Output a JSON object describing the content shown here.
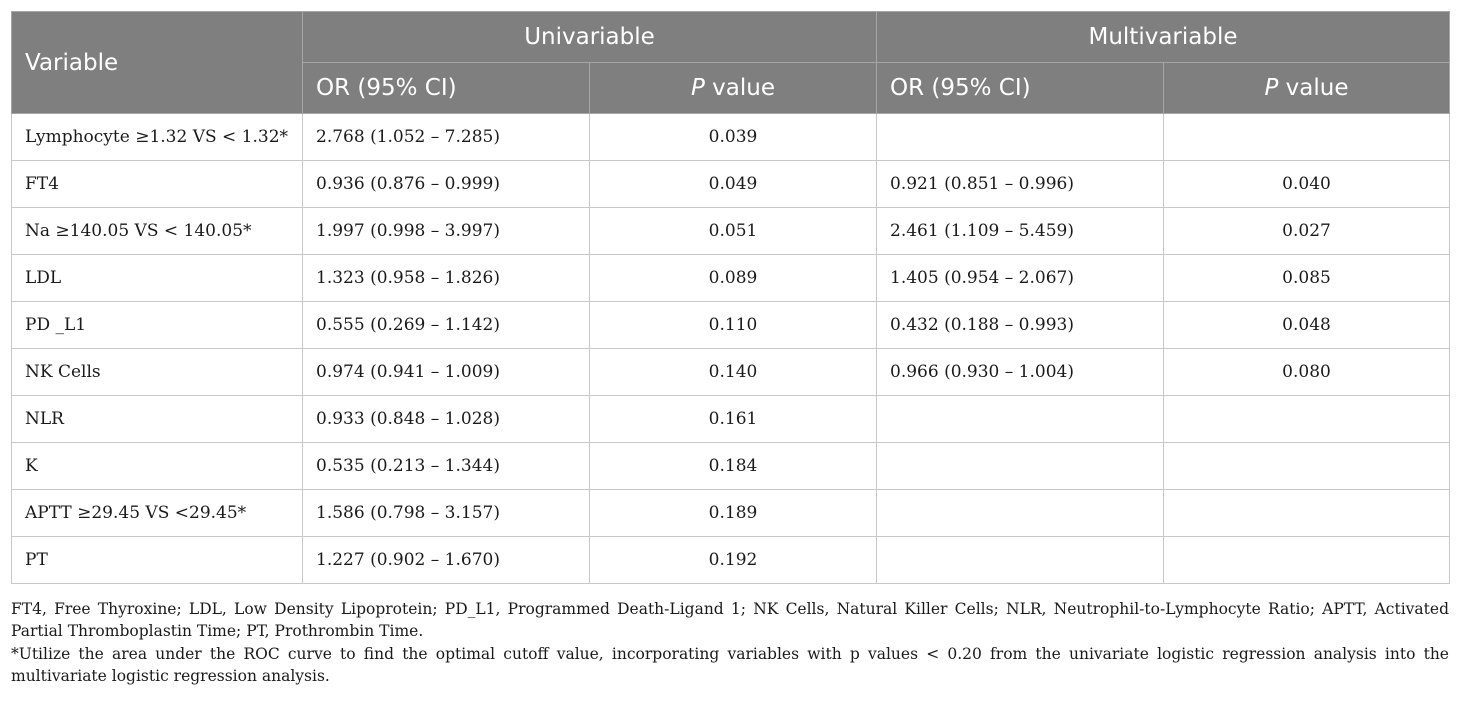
{
  "table": {
    "header": {
      "variable": "Variable",
      "univariable": "Univariable",
      "multivariable": "Multivariable",
      "or_ci": "OR (95% CI)",
      "p_italic": "P",
      "p_rest": " value"
    },
    "rows": [
      {
        "variable": "Lymphocyte ≥1.32 VS < 1.32*",
        "uni_or": "2.768 (1.052 – 7.285)",
        "uni_p": "0.039",
        "multi_or": "",
        "multi_p": ""
      },
      {
        "variable": "FT4",
        "uni_or": "0.936 (0.876 – 0.999)",
        "uni_p": "0.049",
        "multi_or": "0.921 (0.851 – 0.996)",
        "multi_p": "0.040"
      },
      {
        "variable": "Na ≥140.05 VS < 140.05*",
        "uni_or": "1.997 (0.998 – 3.997)",
        "uni_p": "0.051",
        "multi_or": "2.461 (1.109 – 5.459)",
        "multi_p": "0.027"
      },
      {
        "variable": "LDL",
        "uni_or": "1.323 (0.958 – 1.826)",
        "uni_p": "0.089",
        "multi_or": "1.405 (0.954 – 2.067)",
        "multi_p": "0.085"
      },
      {
        "variable": "PD _L1",
        "uni_or": "0.555 (0.269 – 1.142)",
        "uni_p": "0.110",
        "multi_or": "0.432 (0.188 – 0.993)",
        "multi_p": "0.048"
      },
      {
        "variable": "NK Cells",
        "uni_or": "0.974 (0.941 – 1.009)",
        "uni_p": "0.140",
        "multi_or": "0.966 (0.930 – 1.004)",
        "multi_p": "0.080"
      },
      {
        "variable": "NLR",
        "uni_or": "0.933 (0.848 – 1.028)",
        "uni_p": "0.161",
        "multi_or": "",
        "multi_p": ""
      },
      {
        "variable": "K",
        "uni_or": "0.535 (0.213 – 1.344)",
        "uni_p": "0.184",
        "multi_or": "",
        "multi_p": ""
      },
      {
        "variable": "APTT ≥29.45 VS <29.45*",
        "uni_or": "1.586 (0.798 – 3.157)",
        "uni_p": "0.189",
        "multi_or": "",
        "multi_p": ""
      },
      {
        "variable": "PT",
        "uni_or": "1.227 (0.902 – 1.670)",
        "uni_p": "0.192",
        "multi_or": "",
        "multi_p": ""
      }
    ]
  },
  "footnotes": {
    "abbreviations": "FT4, Free Thyroxine; LDL, Low Density Lipoprotein; PD_L1, Programmed Death-Ligand 1; NK Cells, Natural Killer Cells; NLR, Neutrophil-to-Lymphocyte Ratio; APTT, Activated Partial Thromboplastin Time; PT, Prothrombin Time.",
    "asterisk": "*Utilize the area under the ROC curve to find the optimal cutoff value, incorporating variables with p values < 0.20 from the univariate logistic regression analysis into the multivariate logistic regression analysis."
  }
}
